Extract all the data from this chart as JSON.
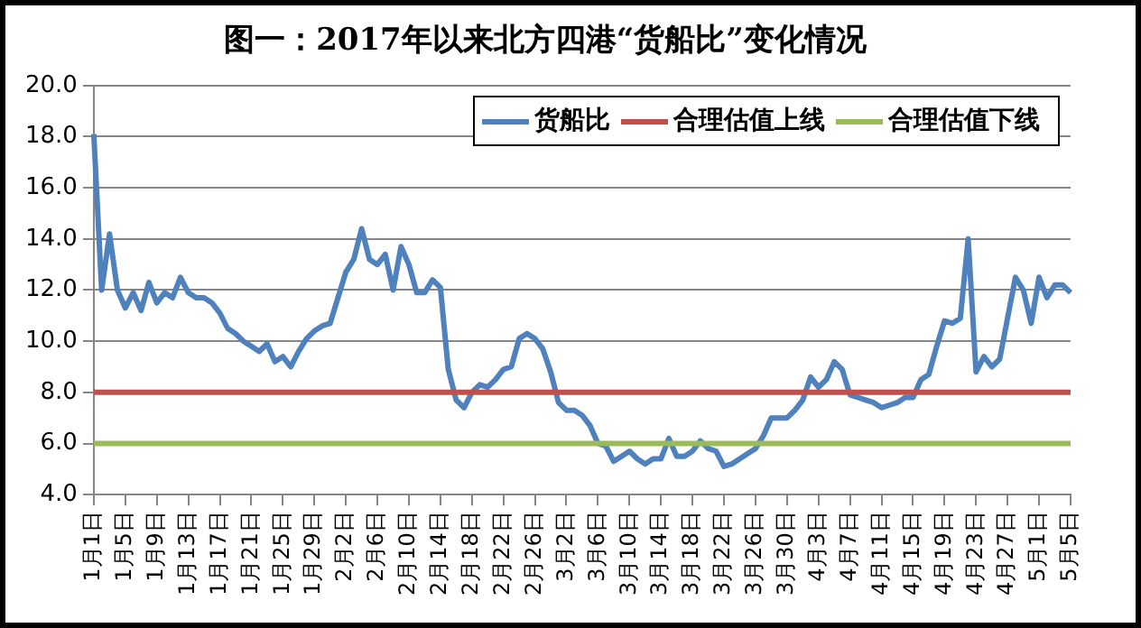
{
  "chart_data": {
    "type": "line",
    "title": "图一：2017年以来北方四港“货船比”变化情况",
    "categories": [
      "1月1日",
      null,
      null,
      null,
      "1月5日",
      null,
      null,
      null,
      "1月9日",
      null,
      null,
      null,
      "1月13日",
      null,
      null,
      null,
      "1月17日",
      null,
      null,
      null,
      "1月21日",
      null,
      null,
      null,
      "1月25日",
      null,
      null,
      null,
      "1月29日",
      null,
      null,
      null,
      "2月2日",
      null,
      null,
      null,
      "2月6日",
      null,
      null,
      null,
      "2月10日",
      null,
      null,
      null,
      "2月14日",
      null,
      null,
      null,
      "2月18日",
      null,
      null,
      null,
      "2月22日",
      null,
      null,
      null,
      "2月26日",
      null,
      null,
      null,
      "3月2日",
      null,
      null,
      null,
      "3月6日",
      null,
      null,
      null,
      "3月10日",
      null,
      null,
      null,
      "3月14日",
      null,
      null,
      null,
      "3月18日",
      null,
      null,
      null,
      "3月22日",
      null,
      null,
      null,
      "3月26日",
      null,
      null,
      null,
      "3月30日",
      null,
      null,
      null,
      "4月3日",
      null,
      null,
      null,
      "4月7日",
      null,
      null,
      null,
      "4月11日",
      null,
      null,
      null,
      "4月15日",
      null,
      null,
      null,
      "4月19日",
      null,
      null,
      null,
      "4月23日",
      null,
      null,
      null,
      "4月27日",
      null,
      null,
      null,
      "5月1日",
      null,
      null,
      null,
      "5月5日"
    ],
    "series": [
      {
        "name": "货船比",
        "color": "#4f81bd",
        "values": [
          18.1,
          12.0,
          14.2,
          12.0,
          11.3,
          11.9,
          11.2,
          12.3,
          11.5,
          11.9,
          11.7,
          12.5,
          11.9,
          11.7,
          11.7,
          11.5,
          11.1,
          10.5,
          10.3,
          10.0,
          9.8,
          9.6,
          9.9,
          9.2,
          9.4,
          9.0,
          9.6,
          10.1,
          10.4,
          10.6,
          10.7,
          11.7,
          12.7,
          13.2,
          14.4,
          13.2,
          13.0,
          13.4,
          12.0,
          13.7,
          13.0,
          11.9,
          11.9,
          12.4,
          12.1,
          8.9,
          7.7,
          7.4,
          8.0,
          8.3,
          8.2,
          8.5,
          8.9,
          9.0,
          10.1,
          10.3,
          10.1,
          9.7,
          8.8,
          7.6,
          7.3,
          7.3,
          7.1,
          6.7,
          6.0,
          5.9,
          5.3,
          5.5,
          5.7,
          5.4,
          5.2,
          5.4,
          5.4,
          6.2,
          5.5,
          5.5,
          5.7,
          6.1,
          5.8,
          5.7,
          5.1,
          5.2,
          5.4,
          5.6,
          5.8,
          6.3,
          7.0,
          7.0,
          7.0,
          7.3,
          7.7,
          8.6,
          8.2,
          8.5,
          9.2,
          8.9,
          7.9,
          7.8,
          7.7,
          7.6,
          7.4,
          7.5,
          7.6,
          7.8,
          7.8,
          8.5,
          8.7,
          9.8,
          10.8,
          10.7,
          10.9,
          14.0,
          8.8,
          9.4,
          9.0,
          9.3,
          10.9,
          12.5,
          12.0,
          10.7,
          12.5,
          11.7,
          12.2,
          12.2,
          11.9
        ]
      },
      {
        "name": "合理估值上线",
        "color": "#c0504d",
        "values": [
          8,
          8,
          8,
          8,
          8,
          8,
          8,
          8,
          8,
          8,
          8,
          8,
          8,
          8,
          8,
          8,
          8,
          8,
          8,
          8,
          8,
          8,
          8,
          8,
          8,
          8,
          8,
          8,
          8,
          8,
          8,
          8,
          8,
          8,
          8,
          8,
          8,
          8,
          8,
          8,
          8,
          8,
          8,
          8,
          8,
          8,
          8,
          8,
          8,
          8,
          8,
          8,
          8,
          8,
          8,
          8,
          8,
          8,
          8,
          8,
          8,
          8,
          8,
          8,
          8,
          8,
          8,
          8,
          8,
          8,
          8,
          8,
          8,
          8,
          8,
          8,
          8,
          8,
          8,
          8,
          8,
          8,
          8,
          8,
          8,
          8,
          8,
          8,
          8,
          8,
          8,
          8,
          8,
          8,
          8,
          8,
          8,
          8,
          8,
          8,
          8,
          8,
          8,
          8,
          8,
          8,
          8,
          8,
          8,
          8,
          8,
          8,
          8,
          8,
          8,
          8,
          8,
          8,
          8,
          8,
          8,
          8,
          8,
          8,
          8
        ]
      },
      {
        "name": "合理估值下线",
        "color": "#9bbb59",
        "values": [
          6,
          6,
          6,
          6,
          6,
          6,
          6,
          6,
          6,
          6,
          6,
          6,
          6,
          6,
          6,
          6,
          6,
          6,
          6,
          6,
          6,
          6,
          6,
          6,
          6,
          6,
          6,
          6,
          6,
          6,
          6,
          6,
          6,
          6,
          6,
          6,
          6,
          6,
          6,
          6,
          6,
          6,
          6,
          6,
          6,
          6,
          6,
          6,
          6,
          6,
          6,
          6,
          6,
          6,
          6,
          6,
          6,
          6,
          6,
          6,
          6,
          6,
          6,
          6,
          6,
          6,
          6,
          6,
          6,
          6,
          6,
          6,
          6,
          6,
          6,
          6,
          6,
          6,
          6,
          6,
          6,
          6,
          6,
          6,
          6,
          6,
          6,
          6,
          6,
          6,
          6,
          6,
          6,
          6,
          6,
          6,
          6,
          6,
          6,
          6,
          6,
          6,
          6,
          6,
          6,
          6,
          6,
          6,
          6,
          6,
          6,
          6,
          6,
          6,
          6,
          6,
          6,
          6,
          6,
          6,
          6,
          6,
          6,
          6,
          6
        ]
      }
    ],
    "ylim": [
      4,
      20
    ],
    "yticks": [
      {
        "value": 4,
        "label": "4.0"
      },
      {
        "value": 6,
        "label": "6.0"
      },
      {
        "value": 8,
        "label": "8.0"
      },
      {
        "value": 10,
        "label": "10.0"
      },
      {
        "value": 12,
        "label": "12.0"
      },
      {
        "value": 14,
        "label": "14.0"
      },
      {
        "value": 16,
        "label": "16.0"
      },
      {
        "value": 18,
        "label": "18.0"
      },
      {
        "value": 20,
        "label": "20.0"
      }
    ],
    "grid": "y",
    "legend": "top right",
    "marker": "none",
    "line_style": "solid"
  }
}
